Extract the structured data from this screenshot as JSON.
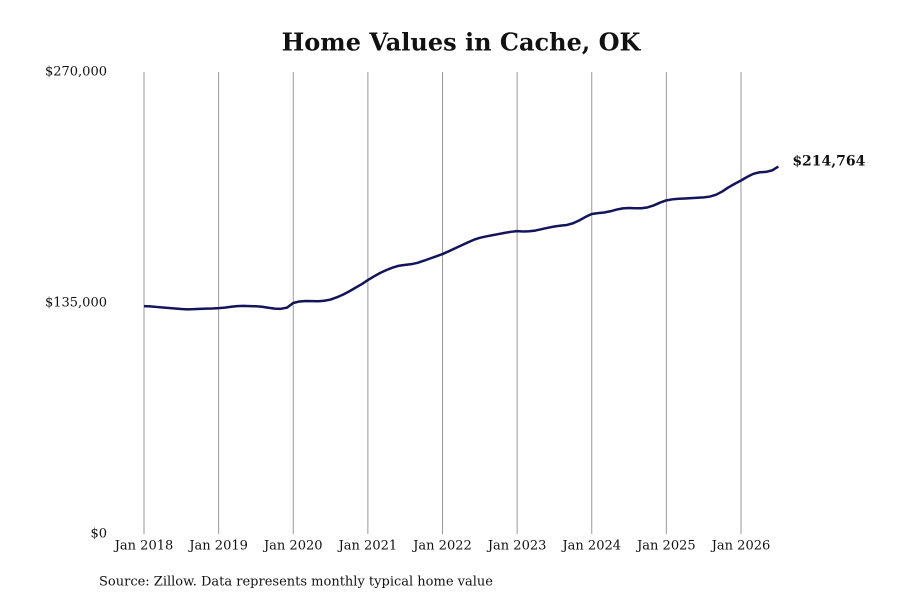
{
  "chart_data": {
    "type": "line",
    "title": "Home Values in Cache, OK",
    "source": "Source: Zillow. Data represents monthly typical home value",
    "x": [
      "2018-01",
      "2018-02",
      "2018-03",
      "2018-04",
      "2018-05",
      "2018-06",
      "2018-07",
      "2018-08",
      "2018-09",
      "2018-10",
      "2018-11",
      "2018-12",
      "2019-01",
      "2019-02",
      "2019-03",
      "2019-04",
      "2019-05",
      "2019-06",
      "2019-07",
      "2019-08",
      "2019-09",
      "2019-10",
      "2019-11",
      "2019-12",
      "2020-01",
      "2020-02",
      "2020-03",
      "2020-04",
      "2020-05",
      "2020-06",
      "2020-07",
      "2020-08",
      "2020-09",
      "2020-10",
      "2020-11",
      "2020-12",
      "2021-01",
      "2021-02",
      "2021-03",
      "2021-04",
      "2021-05",
      "2021-06",
      "2021-07",
      "2021-08",
      "2021-09",
      "2021-10",
      "2021-11",
      "2021-12",
      "2022-01",
      "2022-02",
      "2022-03",
      "2022-04",
      "2022-05",
      "2022-06",
      "2022-07",
      "2022-08",
      "2022-09",
      "2022-10",
      "2022-11",
      "2022-12",
      "2023-01",
      "2023-02",
      "2023-03",
      "2023-04",
      "2023-05",
      "2023-06",
      "2023-07",
      "2023-08",
      "2023-09",
      "2023-10",
      "2023-11",
      "2023-12",
      "2024-01",
      "2024-02",
      "2024-03",
      "2024-04",
      "2024-05",
      "2024-06",
      "2024-07",
      "2024-08",
      "2024-09",
      "2024-10",
      "2024-11",
      "2024-12",
      "2025-01",
      "2025-02",
      "2025-03",
      "2025-04",
      "2025-05",
      "2025-06",
      "2025-07",
      "2025-08",
      "2025-09",
      "2025-10",
      "2025-11",
      "2025-12",
      "2026-01",
      "2026-02",
      "2026-03",
      "2026-04",
      "2026-05",
      "2026-06",
      "2026-07"
    ],
    "series": [
      {
        "name": "Typical home value",
        "color": "#14145a",
        "values": [
          133200,
          133000,
          132700,
          132400,
          132100,
          131800,
          131500,
          131300,
          131400,
          131600,
          131700,
          131800,
          132000,
          132300,
          132800,
          133200,
          133300,
          133200,
          133100,
          132800,
          132200,
          131700,
          131600,
          132300,
          135000,
          135900,
          136200,
          136100,
          136000,
          136300,
          137000,
          138300,
          139900,
          141800,
          143900,
          146000,
          148400,
          150600,
          152600,
          154300,
          155700,
          156800,
          157300,
          157700,
          158500,
          159700,
          161000,
          162300,
          163600,
          165200,
          166900,
          168600,
          170300,
          171900,
          173100,
          173900,
          174600,
          175300,
          176000,
          176600,
          177000,
          176800,
          176900,
          177400,
          178200,
          179000,
          179700,
          180200,
          180600,
          181600,
          183300,
          185300,
          187000,
          187500,
          187900,
          188600,
          189600,
          190300,
          190500,
          190400,
          190400,
          190900,
          192100,
          193700,
          195000,
          195600,
          195900,
          196100,
          196300,
          196500,
          196700,
          197200,
          198300,
          200200,
          202600,
          204700,
          206600,
          208700,
          210500,
          211400,
          211600,
          212500,
          214764
        ]
      }
    ],
    "last_value_label": "$214,764",
    "xticks": [
      {
        "value": "2018-01",
        "label": "Jan 2018"
      },
      {
        "value": "2019-01",
        "label": "Jan 2019"
      },
      {
        "value": "2020-01",
        "label": "Jan 2020"
      },
      {
        "value": "2021-01",
        "label": "Jan 2021"
      },
      {
        "value": "2022-01",
        "label": "Jan 2022"
      },
      {
        "value": "2023-01",
        "label": "Jan 2023"
      },
      {
        "value": "2024-01",
        "label": "Jan 2024"
      },
      {
        "value": "2025-01",
        "label": "Jan 2025"
      },
      {
        "value": "2026-01",
        "label": "Jan 2026"
      }
    ],
    "ylim": [
      0,
      270000
    ],
    "yticks": [
      {
        "value": 0,
        "label": "$0"
      },
      {
        "value": 135000,
        "label": "$135,000"
      },
      {
        "value": 270000,
        "label": "$270,000"
      }
    ],
    "grid": "x"
  }
}
